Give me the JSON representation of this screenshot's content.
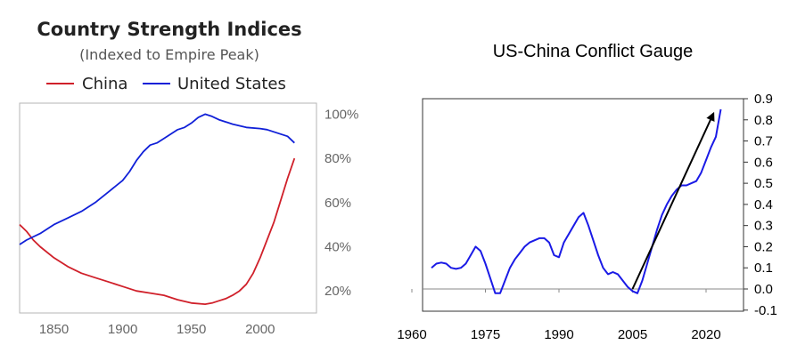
{
  "chart_data": [
    {
      "type": "line",
      "title": "Country Strength Indices",
      "subtitle": "(Indexed to Empire Peak)",
      "xlabel": "",
      "ylabel": "",
      "xlim": [
        1825,
        2030
      ],
      "ylim": [
        0.1,
        1.05
      ],
      "x_ticks": [
        "1850",
        "1900",
        "1950",
        "2000"
      ],
      "y_ticks": [
        "20%",
        "40%",
        "60%",
        "80%",
        "100%"
      ],
      "legend_position": "top",
      "grid": false,
      "series": [
        {
          "name": "China",
          "color": "#d0202a",
          "x": [
            1825,
            1830,
            1835,
            1840,
            1850,
            1860,
            1870,
            1880,
            1890,
            1900,
            1910,
            1920,
            1930,
            1940,
            1950,
            1960,
            1965,
            1970,
            1975,
            1980,
            1985,
            1990,
            1995,
            2000,
            2005,
            2010,
            2015,
            2020,
            2025
          ],
          "y": [
            0.5,
            0.47,
            0.43,
            0.4,
            0.35,
            0.31,
            0.28,
            0.26,
            0.24,
            0.22,
            0.2,
            0.19,
            0.18,
            0.16,
            0.145,
            0.14,
            0.145,
            0.155,
            0.165,
            0.18,
            0.2,
            0.23,
            0.28,
            0.35,
            0.43,
            0.51,
            0.61,
            0.71,
            0.8
          ]
        },
        {
          "name": "United States",
          "color": "#1020d8",
          "x": [
            1825,
            1830,
            1840,
            1850,
            1860,
            1870,
            1880,
            1890,
            1900,
            1905,
            1910,
            1915,
            1920,
            1925,
            1930,
            1935,
            1940,
            1945,
            1950,
            1955,
            1960,
            1965,
            1970,
            1975,
            1980,
            1990,
            2000,
            2005,
            2010,
            2015,
            2020,
            2025
          ],
          "y": [
            0.41,
            0.43,
            0.46,
            0.5,
            0.53,
            0.56,
            0.6,
            0.65,
            0.7,
            0.74,
            0.79,
            0.83,
            0.86,
            0.87,
            0.89,
            0.91,
            0.93,
            0.94,
            0.96,
            0.985,
            1.0,
            0.99,
            0.975,
            0.965,
            0.955,
            0.94,
            0.935,
            0.93,
            0.92,
            0.91,
            0.9,
            0.87
          ]
        }
      ]
    },
    {
      "type": "line",
      "title": "US-China Conflict Gauge",
      "xlabel": "",
      "ylabel": "",
      "xlim": [
        1962,
        2024
      ],
      "ylim": [
        -0.1,
        0.9
      ],
      "x_ticks": [
        "1960",
        "1975",
        "1990",
        "2005",
        "2020"
      ],
      "y_ticks": [
        "-0.1",
        "0.0",
        "0.1",
        "0.2",
        "0.3",
        "0.4",
        "0.5",
        "0.6",
        "0.7",
        "0.8",
        "0.9"
      ],
      "grid": false,
      "series": [
        {
          "color": "#1a1ae6",
          "x": [
            1964,
            1965,
            1966,
            1967,
            1968,
            1969,
            1970,
            1971,
            1972,
            1973,
            1974,
            1975,
            1976,
            1977,
            1978,
            1979,
            1980,
            1981,
            1982,
            1983,
            1984,
            1985,
            1986,
            1987,
            1988,
            1989,
            1990,
            1991,
            1992,
            1993,
            1994,
            1995,
            1996,
            1997,
            1998,
            1999,
            2000,
            2001,
            2002,
            2003,
            2004,
            2005,
            2006,
            2007,
            2008,
            2009,
            2010,
            2011,
            2012,
            2013,
            2014,
            2015,
            2016,
            2017,
            2018,
            2019,
            2020,
            2021,
            2022,
            2023
          ],
          "y": [
            0.1,
            0.12,
            0.125,
            0.12,
            0.1,
            0.095,
            0.1,
            0.12,
            0.16,
            0.2,
            0.18,
            0.12,
            0.05,
            -0.02,
            -0.02,
            0.04,
            0.1,
            0.14,
            0.17,
            0.2,
            0.22,
            0.23,
            0.24,
            0.24,
            0.22,
            0.16,
            0.15,
            0.22,
            0.26,
            0.3,
            0.34,
            0.36,
            0.3,
            0.23,
            0.16,
            0.1,
            0.07,
            0.08,
            0.07,
            0.04,
            0.01,
            -0.01,
            -0.02,
            0.04,
            0.12,
            0.2,
            0.28,
            0.35,
            0.4,
            0.44,
            0.47,
            0.49,
            0.49,
            0.5,
            0.51,
            0.55,
            0.61,
            0.67,
            0.72,
            0.85
          ]
        }
      ],
      "annotations": [
        {
          "type": "arrow",
          "from": [
            2005,
            0.0
          ],
          "to": [
            2021.5,
            0.83
          ],
          "color": "#000000"
        }
      ]
    }
  ]
}
